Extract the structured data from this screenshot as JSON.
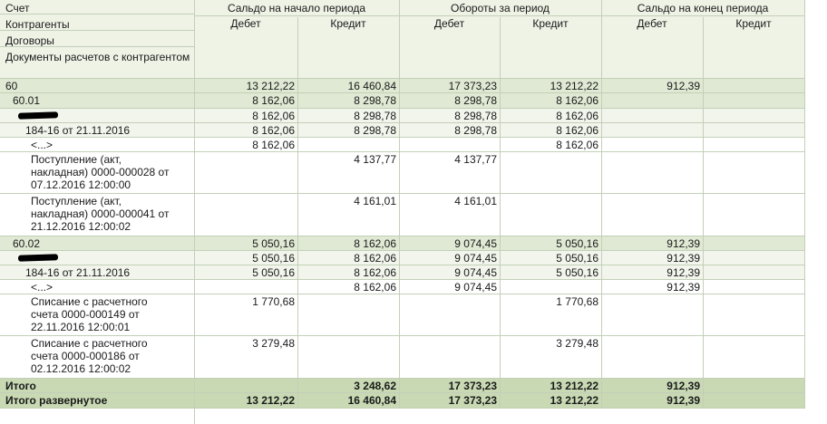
{
  "header": {
    "account": "Счет",
    "counterparties": "Контрагенты",
    "contracts": "Договоры",
    "documents": "Документы расчетов с контрагентом",
    "opening_balance": "Сальдо на начало периода",
    "turnover": "Обороты за период",
    "closing_balance": "Сальдо на конец периода",
    "debit": "Дебет",
    "credit": "Кредит"
  },
  "rows": [
    {
      "label": "60",
      "kind": "account",
      "v": [
        "13 212,22",
        "16 460,84",
        "17 373,23",
        "13 212,22",
        "912,39",
        ""
      ]
    },
    {
      "label": "60.01",
      "kind": "subaccount",
      "v": [
        "8 162,06",
        "8 298,78",
        "8 298,78",
        "8 162,06",
        "",
        ""
      ]
    },
    {
      "label": "",
      "kind": "counterparty",
      "v": [
        "8 162,06",
        "8 298,78",
        "8 298,78",
        "8 162,06",
        "",
        ""
      ]
    },
    {
      "label": "184-16 от 21.11.2016",
      "kind": "contract",
      "v": [
        "8 162,06",
        "8 298,78",
        "8 298,78",
        "8 162,06",
        "",
        ""
      ]
    },
    {
      "label": "<...>",
      "kind": "document",
      "v": [
        "8 162,06",
        "",
        "",
        "8 162,06",
        "",
        ""
      ]
    },
    {
      "label": "Поступление (акт, накладная) 0000-000028 от 07.12.2016 12:00:00",
      "kind": "document",
      "v": [
        "",
        "4 137,77",
        "4 137,77",
        "",
        "",
        ""
      ]
    },
    {
      "label": "Поступление (акт, накладная) 0000-000041 от 21.12.2016 12:00:02",
      "kind": "document",
      "v": [
        "",
        "4 161,01",
        "4 161,01",
        "",
        "",
        ""
      ]
    },
    {
      "label": "60.02",
      "kind": "subaccount",
      "v": [
        "5 050,16",
        "8 162,06",
        "9 074,45",
        "5 050,16",
        "912,39",
        ""
      ]
    },
    {
      "label": "",
      "kind": "counterparty",
      "v": [
        "5 050,16",
        "8 162,06",
        "9 074,45",
        "5 050,16",
        "912,39",
        ""
      ]
    },
    {
      "label": "184-16 от 21.11.2016",
      "kind": "contract",
      "v": [
        "5 050,16",
        "8 162,06",
        "9 074,45",
        "5 050,16",
        "912,39",
        ""
      ]
    },
    {
      "label": "<...>",
      "kind": "document",
      "v": [
        "",
        "8 162,06",
        "9 074,45",
        "",
        "912,39",
        ""
      ]
    },
    {
      "label": "Списание с расчетного счета 0000-000149 от 22.11.2016 12:00:01",
      "kind": "document",
      "v": [
        "1 770,68",
        "",
        "",
        "1 770,68",
        "",
        ""
      ]
    },
    {
      "label": "Списание с расчетного счета 0000-000186 от 02.12.2016 12:00:02",
      "kind": "document",
      "v": [
        "3 279,48",
        "",
        "",
        "3 279,48",
        "",
        ""
      ]
    },
    {
      "label": "Итого",
      "kind": "total",
      "v": [
        "",
        "3 248,62",
        "17 373,23",
        "13 212,22",
        "912,39",
        ""
      ]
    },
    {
      "label": "Итого развернутое",
      "kind": "total",
      "v": [
        "13 212,22",
        "16 460,84",
        "17 373,23",
        "13 212,22",
        "912,39",
        ""
      ]
    }
  ],
  "colors": {
    "header_bg": "#eef3e6",
    "group_bg": "#dfe9d3",
    "light_bg": "#f1f5ec",
    "total_bg": "#c8d9b4",
    "grid": "#c3cfb8"
  }
}
